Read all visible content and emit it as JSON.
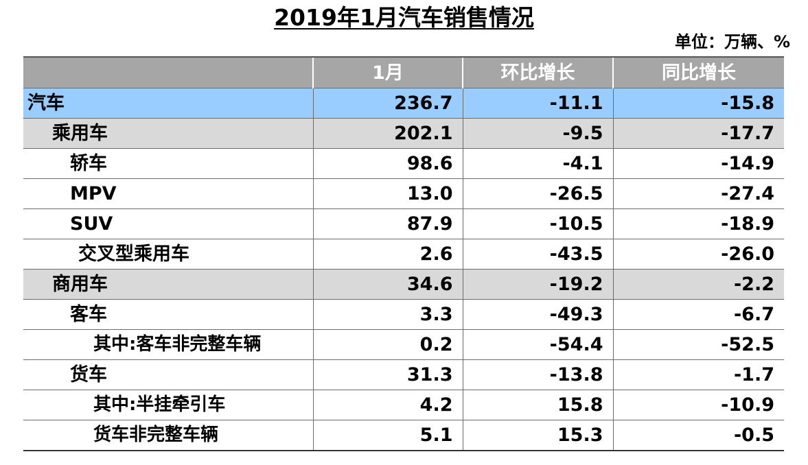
{
  "title": "2019年1月汽车销售情况",
  "unit": "单位：万辆、%",
  "columns": [
    "",
    "1月",
    "环比增长",
    "同比增长"
  ],
  "rows": [
    {
      "level": "lvl0",
      "label": "汽车",
      "jan": "236.7",
      "mom": "-11.1",
      "yoy": "-15.8"
    },
    {
      "level": "lvl1",
      "label": "乘用车",
      "jan": "202.1",
      "mom": "-9.5",
      "yoy": "-17.7"
    },
    {
      "level": "lvl2",
      "label": "轿车",
      "jan": "98.6",
      "mom": "-4.1",
      "yoy": "-14.9"
    },
    {
      "level": "lvl2",
      "label": "MPV",
      "jan": "13.0",
      "mom": "-26.5",
      "yoy": "-27.4"
    },
    {
      "level": "lvl2",
      "label": "SUV",
      "jan": "87.9",
      "mom": "-10.5",
      "yoy": "-18.9"
    },
    {
      "level": "lvl2b",
      "label": "交叉型乘用车",
      "jan": "2.6",
      "mom": "-43.5",
      "yoy": "-26.0"
    },
    {
      "level": "lvl1",
      "label": "商用车",
      "jan": "34.6",
      "mom": "-19.2",
      "yoy": "-2.2"
    },
    {
      "level": "lvl2",
      "label": "客车",
      "jan": "3.3",
      "mom": "-49.3",
      "yoy": "-6.7"
    },
    {
      "level": "lvl3",
      "label": "其中:客车非完整车辆",
      "jan": "0.2",
      "mom": "-54.4",
      "yoy": "-52.5"
    },
    {
      "level": "lvl2",
      "label": "货车",
      "jan": "31.3",
      "mom": "-13.8",
      "yoy": "-1.7"
    },
    {
      "level": "lvl3",
      "label": "其中:半挂牵引车",
      "jan": "4.2",
      "mom": "15.8",
      "yoy": "-10.9"
    },
    {
      "level": "lvl3",
      "label": "货车非完整车辆",
      "jan": "5.1",
      "mom": "15.3",
      "yoy": "-0.5"
    }
  ]
}
